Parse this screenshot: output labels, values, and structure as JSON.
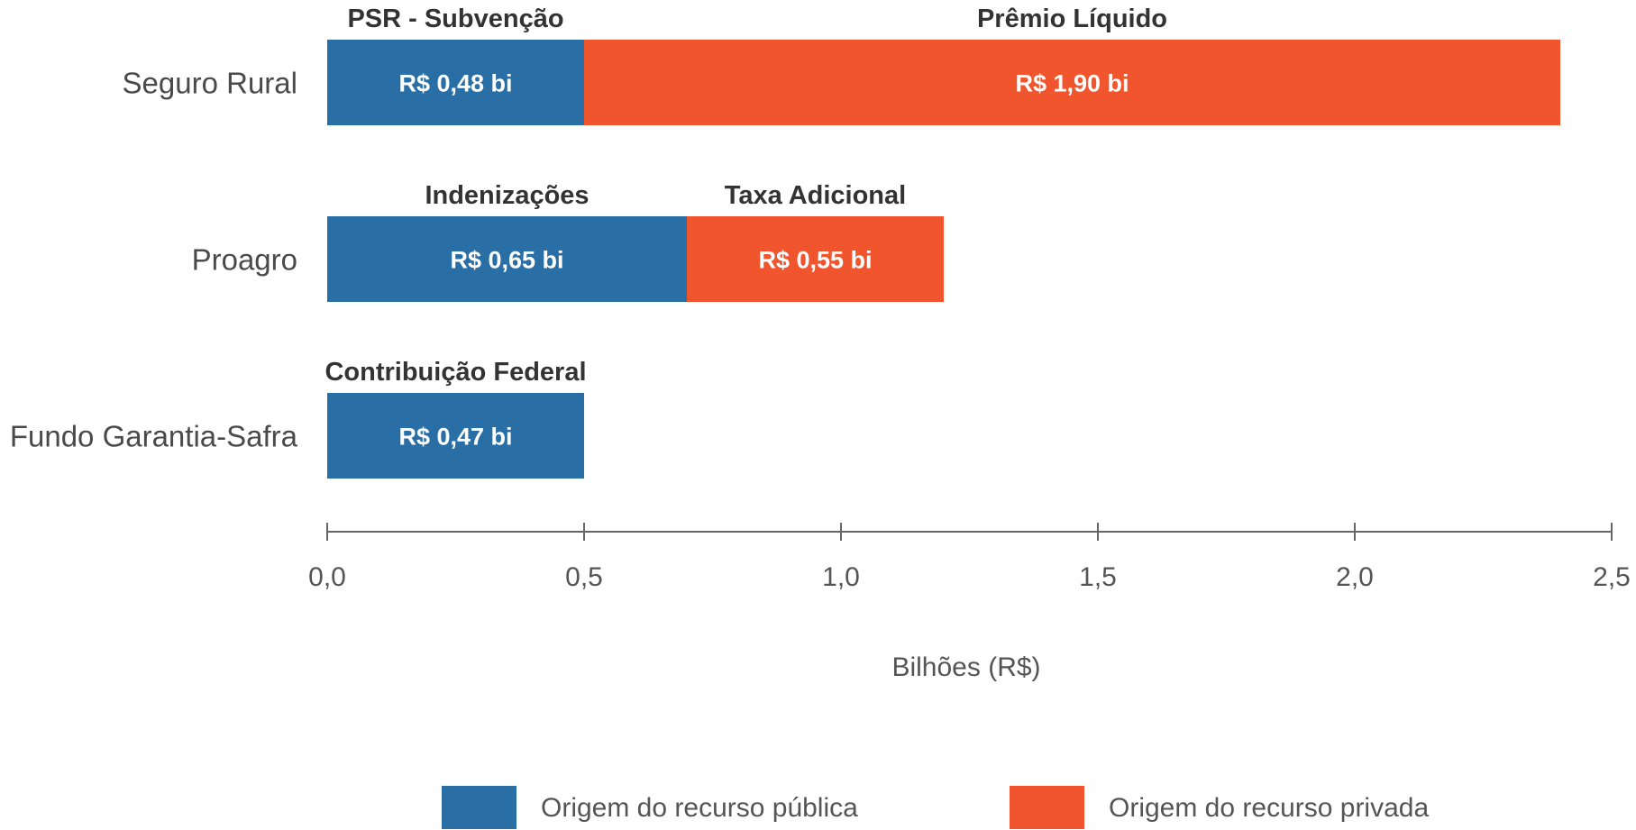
{
  "chart_data": {
    "type": "bar",
    "orientation": "horizontal",
    "stacked": true,
    "categories": [
      "Seguro Rural",
      "Proagro",
      "Fundo Garantia-Safra"
    ],
    "segments": [
      [
        {
          "label": "PSR - Subvenção",
          "value": 0.5,
          "value_label": "R$ 0,48 bi",
          "origin": "publica"
        },
        {
          "label": "Prêmio Líquido",
          "value": 1.9,
          "value_label": "R$ 1,90 bi",
          "origin": "privada"
        }
      ],
      [
        {
          "label": "Indenizações",
          "value": 0.7,
          "value_label": "R$ 0,65 bi",
          "origin": "publica"
        },
        {
          "label": "Taxa Adicional",
          "value": 0.5,
          "value_label": "R$ 0,55 bi",
          "origin": "privada"
        }
      ],
      [
        {
          "label": "Contribuição Federal",
          "value": 0.5,
          "value_label": "R$ 0,47 bi",
          "origin": "publica"
        }
      ]
    ],
    "xlabel": "Bilhões (R$)",
    "xlim": [
      0,
      2.5
    ],
    "ticks": [
      0,
      0.5,
      1.0,
      1.5,
      2.0,
      2.5
    ],
    "tick_labels": [
      "0,0",
      "0,5",
      "1,0",
      "1,5",
      "2,0",
      "2,5"
    ],
    "grid": false,
    "legend": {
      "position": "bottom",
      "entries": [
        {
          "key": "publica",
          "label": "Origem do recurso pública",
          "color": "#2a6ea6"
        },
        {
          "key": "privada",
          "label": "Origem do recurso privada",
          "color": "#f0552d"
        }
      ]
    }
  }
}
